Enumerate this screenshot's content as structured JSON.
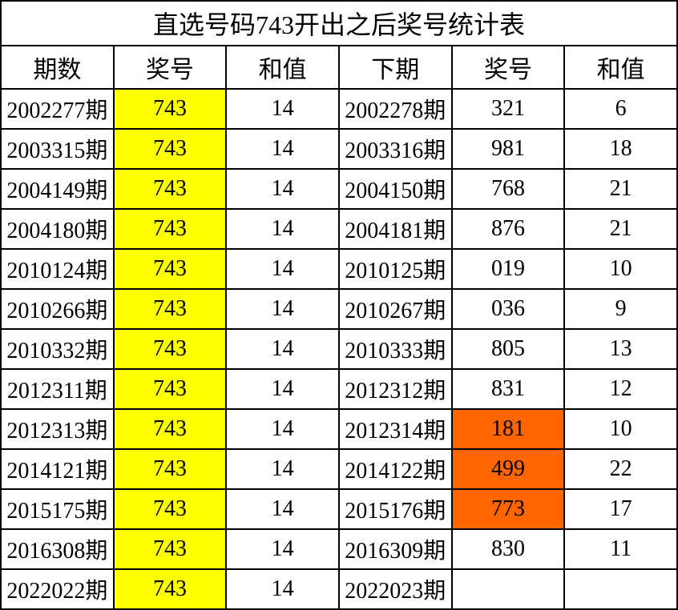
{
  "title": "直选号码743开出之后奖号统计表",
  "columns": [
    "期数",
    "奖号",
    "和值",
    "下期",
    "奖号",
    "和值"
  ],
  "column_classes": [
    "col-period",
    "col-num",
    "col-sum",
    "col-next-period",
    "col-next-num",
    "col-next-sum"
  ],
  "highlight_colors": {
    "yellow": "#ffff00",
    "orange": "#ff6600",
    "border": "#000000",
    "background": "#ffffff",
    "text": "#000000"
  },
  "rows": [
    {
      "period": "2002277期",
      "num": "743",
      "sum": "14",
      "next_period": "2002278期",
      "next_num": "321",
      "next_sum": "6",
      "next_num_highlight": null
    },
    {
      "period": "2003315期",
      "num": "743",
      "sum": "14",
      "next_period": "2003316期",
      "next_num": "981",
      "next_sum": "18",
      "next_num_highlight": null
    },
    {
      "period": "2004149期",
      "num": "743",
      "sum": "14",
      "next_period": "2004150期",
      "next_num": "768",
      "next_sum": "21",
      "next_num_highlight": null
    },
    {
      "period": "2004180期",
      "num": "743",
      "sum": "14",
      "next_period": "2004181期",
      "next_num": "876",
      "next_sum": "21",
      "next_num_highlight": null
    },
    {
      "period": "2010124期",
      "num": "743",
      "sum": "14",
      "next_period": "2010125期",
      "next_num": "019",
      "next_sum": "10",
      "next_num_highlight": null
    },
    {
      "period": "2010266期",
      "num": "743",
      "sum": "14",
      "next_period": "2010267期",
      "next_num": "036",
      "next_sum": "9",
      "next_num_highlight": null
    },
    {
      "period": "2010332期",
      "num": "743",
      "sum": "14",
      "next_period": "2010333期",
      "next_num": "805",
      "next_sum": "13",
      "next_num_highlight": null
    },
    {
      "period": "2012311期",
      "num": "743",
      "sum": "14",
      "next_period": "2012312期",
      "next_num": "831",
      "next_sum": "12",
      "next_num_highlight": null
    },
    {
      "period": "2012313期",
      "num": "743",
      "sum": "14",
      "next_period": "2012314期",
      "next_num": "181",
      "next_sum": "10",
      "next_num_highlight": "orange"
    },
    {
      "period": "2014121期",
      "num": "743",
      "sum": "14",
      "next_period": "2014122期",
      "next_num": "499",
      "next_sum": "22",
      "next_num_highlight": "orange"
    },
    {
      "period": "2015175期",
      "num": "743",
      "sum": "14",
      "next_period": "2015176期",
      "next_num": "773",
      "next_sum": "17",
      "next_num_highlight": "orange"
    },
    {
      "period": "2016308期",
      "num": "743",
      "sum": "14",
      "next_period": "2016309期",
      "next_num": "830",
      "next_sum": "11",
      "next_num_highlight": null
    },
    {
      "period": "2022022期",
      "num": "743",
      "sum": "14",
      "next_period": "2022023期",
      "next_num": "",
      "next_sum": "",
      "next_num_highlight": null
    }
  ],
  "typography": {
    "title_fontsize": 32,
    "header_fontsize": 30,
    "cell_fontsize": 28,
    "font_family": "SimSun"
  }
}
